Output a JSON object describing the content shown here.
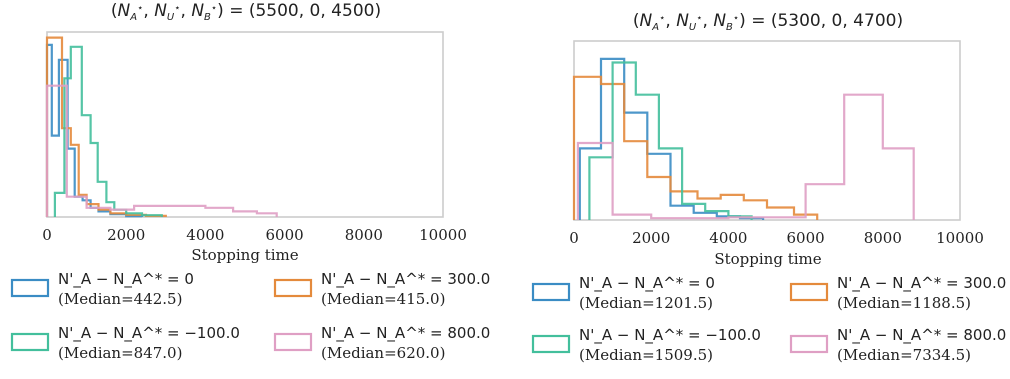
{
  "chart_data": [
    {
      "type": "histogram",
      "title": "(N_A^*, N_U^*, N_B^*) = (5500, 0, 4500)",
      "xlabel": "Stopping time",
      "xlim": [
        0,
        10000
      ],
      "xticks": [
        0,
        2000,
        4000,
        6000,
        8000,
        10000
      ],
      "y_ticks_shown": false,
      "grid": false,
      "series": [
        {
          "name": "N'_A − N_A^* = 0",
          "median_label": "(Median=442.5)",
          "color": "#3a8cc4",
          "steps": [
            [
              0,
              0
            ],
            [
              0,
              0.93
            ],
            [
              120,
              0.93
            ],
            [
              120,
              0.44
            ],
            [
              300,
              0.44
            ],
            [
              300,
              0.85
            ],
            [
              520,
              0.85
            ],
            [
              520,
              0.37
            ],
            [
              700,
              0.37
            ],
            [
              700,
              0.11
            ],
            [
              900,
              0.11
            ],
            [
              900,
              0.09
            ],
            [
              1100,
              0.09
            ],
            [
              1100,
              0.05
            ],
            [
              1300,
              0.05
            ],
            [
              1300,
              0.03
            ],
            [
              1600,
              0.03
            ],
            [
              1600,
              0.015
            ],
            [
              2000,
              0.015
            ],
            [
              2000,
              0.005
            ],
            [
              2400,
              0.005
            ],
            [
              2400,
              0
            ]
          ]
        },
        {
          "name": "N'_A − N_A^* = 300.0",
          "median_label": "(Median=415.0)",
          "color": "#e48a3c",
          "steps": [
            [
              0,
              0
            ],
            [
              0,
              0.97
            ],
            [
              380,
              0.97
            ],
            [
              380,
              0.48
            ],
            [
              600,
              0.48
            ],
            [
              600,
              0.39
            ],
            [
              800,
              0.39
            ],
            [
              800,
              0.12
            ],
            [
              1000,
              0.12
            ],
            [
              1000,
              0.07
            ],
            [
              1300,
              0.07
            ],
            [
              1300,
              0.04
            ],
            [
              1600,
              0.04
            ],
            [
              1600,
              0.02
            ],
            [
              2000,
              0.02
            ],
            [
              2000,
              0.012
            ],
            [
              2500,
              0.012
            ],
            [
              2500,
              0.006
            ],
            [
              3000,
              0.006
            ],
            [
              3000,
              0
            ]
          ]
        },
        {
          "name": "N'_A − N_A^* = −100.0",
          "median_label": "(Median=847.0)",
          "color": "#43bf9c",
          "steps": [
            [
              200,
              0
            ],
            [
              200,
              0.13
            ],
            [
              440,
              0.13
            ],
            [
              440,
              0.75
            ],
            [
              600,
              0.75
            ],
            [
              600,
              0.92
            ],
            [
              880,
              0.92
            ],
            [
              880,
              0.55
            ],
            [
              1100,
              0.55
            ],
            [
              1100,
              0.4
            ],
            [
              1280,
              0.4
            ],
            [
              1280,
              0.19
            ],
            [
              1500,
              0.19
            ],
            [
              1500,
              0.08
            ],
            [
              1700,
              0.08
            ],
            [
              1700,
              0.04
            ],
            [
              2000,
              0.04
            ],
            [
              2000,
              0.02
            ],
            [
              2400,
              0.02
            ],
            [
              2400,
              0.01
            ],
            [
              2900,
              0.01
            ],
            [
              2900,
              0
            ]
          ]
        },
        {
          "name": "N'_A − N_A^* = 800.0",
          "median_label": "(Median=620.0)",
          "color": "#df9fc4",
          "steps": [
            [
              0,
              0
            ],
            [
              0,
              0.71
            ],
            [
              500,
              0.71
            ],
            [
              500,
              0.11
            ],
            [
              1000,
              0.11
            ],
            [
              1000,
              0.05
            ],
            [
              1600,
              0.05
            ],
            [
              1600,
              0.04
            ],
            [
              2200,
              0.04
            ],
            [
              2200,
              0.06
            ],
            [
              4000,
              0.06
            ],
            [
              4000,
              0.05
            ],
            [
              4700,
              0.05
            ],
            [
              4700,
              0.03
            ],
            [
              5300,
              0.03
            ],
            [
              5300,
              0.02
            ],
            [
              5800,
              0.02
            ],
            [
              5800,
              0
            ]
          ]
        }
      ]
    },
    {
      "type": "histogram",
      "title": "(N_A^*, N_U^*, N_B^*) = (5300, 0, 4700)",
      "xlabel": "Stopping time",
      "xlim": [
        0,
        10000
      ],
      "xticks": [
        0,
        2000,
        4000,
        6000,
        8000,
        10000
      ],
      "y_ticks_shown": false,
      "grid": false,
      "series": [
        {
          "name": "N'_A − N_A^* = 0",
          "median_label": "(Median=1201.5)",
          "color": "#3a8cc4",
          "steps": [
            [
              150,
              0
            ],
            [
              150,
              0.4
            ],
            [
              700,
              0.4
            ],
            [
              700,
              0.9
            ],
            [
              1300,
              0.9
            ],
            [
              1300,
              0.6
            ],
            [
              1900,
              0.6
            ],
            [
              1900,
              0.37
            ],
            [
              2500,
              0.37
            ],
            [
              2500,
              0.08
            ],
            [
              3100,
              0.08
            ],
            [
              3100,
              0.04
            ],
            [
              3700,
              0.04
            ],
            [
              3700,
              0.02
            ],
            [
              4300,
              0.02
            ],
            [
              4300,
              0.01
            ],
            [
              4900,
              0.01
            ],
            [
              4900,
              0
            ]
          ]
        },
        {
          "name": "N'_A − N_A^* = 300.0",
          "median_label": "(Median=1188.5)",
          "color": "#e48a3c",
          "steps": [
            [
              0,
              0
            ],
            [
              0,
              0.8
            ],
            [
              700,
              0.8
            ],
            [
              700,
              0.76
            ],
            [
              1300,
              0.76
            ],
            [
              1300,
              0.44
            ],
            [
              1900,
              0.44
            ],
            [
              1900,
              0.24
            ],
            [
              2500,
              0.24
            ],
            [
              2500,
              0.16
            ],
            [
              3200,
              0.16
            ],
            [
              3200,
              0.12
            ],
            [
              3800,
              0.12
            ],
            [
              3800,
              0.14
            ],
            [
              4400,
              0.14
            ],
            [
              4400,
              0.11
            ],
            [
              5000,
              0.11
            ],
            [
              5000,
              0.07
            ],
            [
              5700,
              0.07
            ],
            [
              5700,
              0.03
            ],
            [
              6300,
              0.03
            ],
            [
              6300,
              0
            ]
          ]
        },
        {
          "name": "N'_A − N_A^* = −100.0",
          "median_label": "(Median=1509.5)",
          "color": "#43bf9c",
          "steps": [
            [
              400,
              0
            ],
            [
              400,
              0.35
            ],
            [
              1000,
              0.35
            ],
            [
              1000,
              0.88
            ],
            [
              1600,
              0.88
            ],
            [
              1600,
              0.7
            ],
            [
              2200,
              0.7
            ],
            [
              2200,
              0.4
            ],
            [
              2800,
              0.4
            ],
            [
              2800,
              0.09
            ],
            [
              3400,
              0.09
            ],
            [
              3400,
              0.05
            ],
            [
              4000,
              0.05
            ],
            [
              4000,
              0.02
            ],
            [
              4600,
              0.02
            ],
            [
              4600,
              0
            ]
          ]
        },
        {
          "name": "N'_A − N_A^* = 800.0",
          "median_label": "(Median=7334.5)",
          "color": "#df9fc4",
          "steps": [
            [
              100,
              0
            ],
            [
              100,
              0.43
            ],
            [
              1000,
              0.43
            ],
            [
              1000,
              0.03
            ],
            [
              2000,
              0.03
            ],
            [
              2000,
              0.01
            ],
            [
              4000,
              0.01
            ],
            [
              4000,
              0.015
            ],
            [
              6000,
              0.015
            ],
            [
              6000,
              0.2
            ],
            [
              7000,
              0.2
            ],
            [
              7000,
              0.7
            ],
            [
              8000,
              0.7
            ],
            [
              8000,
              0.4
            ],
            [
              8800,
              0.4
            ],
            [
              8800,
              0
            ]
          ]
        }
      ]
    }
  ]
}
